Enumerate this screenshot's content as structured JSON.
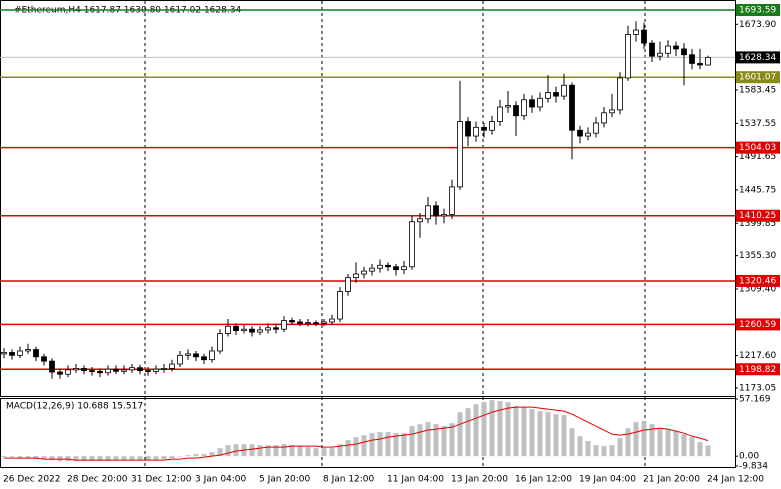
{
  "chart_data": {
    "type": "candlestick",
    "title": "#Ethereum,H4  1617.87 1630.80 1617.02 1628.34",
    "categories": [
      "26 Dec 2022",
      null,
      null,
      null,
      null,
      null,
      null,
      null,
      "28 Dec 20:00",
      null,
      null,
      null,
      null,
      null,
      null,
      null,
      "31 Dec 12:00",
      null,
      null,
      null,
      null,
      null,
      null,
      null,
      "3 Jan 04:00",
      null,
      null,
      null,
      null,
      null,
      null,
      null,
      "5 Jan 20:00",
      null,
      null,
      null,
      null,
      null,
      null,
      null,
      "8 Jan 12:00",
      null,
      null,
      null,
      null,
      null,
      null,
      null,
      "11 Jan 04:00",
      null,
      null,
      null,
      null,
      null,
      null,
      null,
      "13 Jan 20:00",
      null,
      null,
      null,
      null,
      null,
      null,
      null,
      "16 Jan 12:00",
      null,
      null,
      null,
      null,
      null,
      null,
      null,
      "19 Jan 04:00",
      null,
      null,
      null,
      null,
      null,
      null,
      null,
      "21 Jan 20:00",
      null,
      null,
      null,
      null,
      null,
      null,
      null,
      "24 Jan 12:00"
    ],
    "open": [
      1220,
      1222,
      1218,
      1224,
      1226,
      1216,
      1210,
      1195,
      1192,
      1198,
      1200,
      1197,
      1196,
      1194,
      1199,
      1196,
      1198,
      1201,
      1197,
      1196,
      1199,
      1200,
      1206,
      1218,
      1220,
      1216,
      1212,
      1224,
      1248,
      1258,
      1252,
      1254,
      1250,
      1253,
      1256,
      1254,
      1266,
      1264,
      1262,
      1263,
      1262,
      1264,
      1268,
      1306,
      1325,
      1330,
      1334,
      1338,
      1342,
      1340,
      1336,
      1340,
      1402,
      1406,
      1424,
      1410,
      1412,
      1450,
      1540,
      1520,
      1532,
      1528,
      1540,
      1560,
      1562,
      1548,
      1570,
      1560,
      1572,
      1580,
      1575,
      1590,
      1528,
      1520,
      1524,
      1538,
      1552,
      1556,
      1600,
      1660,
      1666,
      1648,
      1630,
      1634,
      1644,
      1640,
      1632,
      1620,
      1617.87
    ],
    "high": [
      1228,
      1226,
      1230,
      1234,
      1230,
      1220,
      1214,
      1200,
      1204,
      1206,
      1204,
      1202,
      1200,
      1204,
      1204,
      1204,
      1206,
      1205,
      1202,
      1204,
      1206,
      1212,
      1224,
      1226,
      1224,
      1220,
      1230,
      1254,
      1268,
      1262,
      1260,
      1258,
      1258,
      1262,
      1260,
      1272,
      1270,
      1268,
      1268,
      1266,
      1268,
      1274,
      1312,
      1330,
      1346,
      1340,
      1344,
      1350,
      1346,
      1344,
      1348,
      1410,
      1414,
      1436,
      1430,
      1420,
      1460,
      1596,
      1546,
      1540,
      1538,
      1548,
      1570,
      1582,
      1568,
      1578,
      1576,
      1580,
      1604,
      1588,
      1606,
      1594,
      1534,
      1532,
      1546,
      1560,
      1578,
      1608,
      1672,
      1678,
      1676,
      1652,
      1650,
      1652,
      1650,
      1648,
      1640,
      1640,
      1630.8
    ],
    "low": [
      1214,
      1212,
      1214,
      1220,
      1210,
      1204,
      1186,
      1186,
      1188,
      1194,
      1192,
      1190,
      1188,
      1190,
      1192,
      1192,
      1194,
      1192,
      1190,
      1192,
      1194,
      1196,
      1202,
      1212,
      1210,
      1206,
      1208,
      1220,
      1244,
      1246,
      1248,
      1244,
      1246,
      1248,
      1248,
      1250,
      1260,
      1258,
      1258,
      1258,
      1258,
      1260,
      1264,
      1300,
      1318,
      1324,
      1328,
      1332,
      1334,
      1328,
      1330,
      1336,
      1380,
      1400,
      1398,
      1400,
      1406,
      1446,
      1506,
      1512,
      1518,
      1522,
      1534,
      1552,
      1520,
      1542,
      1552,
      1554,
      1566,
      1566,
      1570,
      1488,
      1510,
      1514,
      1518,
      1532,
      1546,
      1550,
      1596,
      1650,
      1640,
      1622,
      1624,
      1628,
      1630,
      1590,
      1612,
      1612,
      1617.02
    ],
    "close": [
      1222,
      1218,
      1224,
      1226,
      1216,
      1210,
      1195,
      1192,
      1198,
      1200,
      1197,
      1196,
      1194,
      1199,
      1196,
      1198,
      1201,
      1197,
      1196,
      1199,
      1200,
      1206,
      1218,
      1220,
      1216,
      1212,
      1224,
      1248,
      1258,
      1252,
      1254,
      1250,
      1253,
      1256,
      1254,
      1266,
      1264,
      1262,
      1263,
      1262,
      1264,
      1268,
      1306,
      1325,
      1330,
      1334,
      1338,
      1342,
      1340,
      1336,
      1340,
      1402,
      1406,
      1424,
      1410,
      1412,
      1450,
      1540,
      1520,
      1532,
      1528,
      1540,
      1560,
      1562,
      1548,
      1570,
      1560,
      1572,
      1580,
      1575,
      1590,
      1528,
      1520,
      1524,
      1538,
      1552,
      1556,
      1600,
      1660,
      1666,
      1648,
      1630,
      1634,
      1644,
      1640,
      1632,
      1620,
      1617.87,
      1628.34
    ],
    "ylim": [
      1162,
      1706
    ],
    "yticks": [
      {
        "value": 1673.9,
        "label": "1673.90"
      },
      1583.45,
      1537.55,
      1491.65,
      1445.75,
      1399.85,
      {
        "value": 1355.3,
        "label": "1355.30"
      },
      {
        "value": 1309.4,
        "label": "1309.40"
      },
      {
        "value": 1217.6,
        "label": "1217.60"
      },
      1173.05
    ],
    "levels": [
      {
        "value": 1693.59,
        "color": "#1a7a1a"
      },
      {
        "value": 1601.07,
        "color": "#8a8a1a"
      },
      {
        "value": 1504.03,
        "color": "#e00000"
      },
      {
        "value": 1410.25,
        "color": "#e00000"
      },
      {
        "value": 1320.46,
        "color": "#e00000"
      },
      {
        "value": 1260.59,
        "color": "#e00000"
      },
      {
        "value": 1198.82,
        "color": "#e00000"
      }
    ],
    "indicator": {
      "type": "macd",
      "label": "MACD(12,26,9) 10.688 15.517",
      "histogram_color": "#c0c0c0",
      "signal_color": "#e00000",
      "ylim": [
        -9.834,
        57.169
      ],
      "yticks": [
        57.169,
        {
          "value": 0,
          "label": "0.00"
        },
        -9.834
      ],
      "histogram": [
        -1,
        -1,
        -2,
        -2,
        -3,
        -3,
        -4,
        -5,
        -5,
        -5,
        -5,
        -5,
        -5,
        -5,
        -4,
        -4,
        -4,
        -4,
        -4,
        -4,
        -3,
        -2,
        0,
        1,
        2,
        2,
        4,
        8,
        11,
        12,
        12,
        12,
        11,
        11,
        11,
        12,
        11,
        10,
        9,
        8,
        8,
        8,
        12,
        16,
        19,
        21,
        23,
        24,
        24,
        23,
        23,
        30,
        32,
        34,
        32,
        30,
        33,
        44,
        48,
        52,
        54,
        56,
        55,
        54,
        50,
        49,
        47,
        45,
        44,
        42,
        41,
        28,
        20,
        15,
        11,
        10,
        11,
        18,
        28,
        34,
        35,
        32,
        28,
        27,
        25,
        22,
        19,
        14,
        10.688
      ],
      "signal": [
        -2,
        -2,
        -2,
        -2,
        -2,
        -3,
        -3,
        -3,
        -3,
        -4,
        -4,
        -4,
        -4,
        -4,
        -4,
        -4,
        -4,
        -4,
        -4,
        -4,
        -4,
        -3,
        -3,
        -2,
        -2,
        -1,
        0,
        1,
        3,
        5,
        6,
        7,
        8,
        9,
        9,
        9,
        10,
        10,
        10,
        10,
        9,
        9,
        10,
        11,
        12,
        14,
        16,
        17,
        19,
        20,
        21,
        22,
        24,
        26,
        27,
        28,
        29,
        32,
        35,
        38,
        41,
        44,
        46,
        48,
        49,
        49,
        49,
        48,
        47,
        46,
        45,
        42,
        38,
        34,
        30,
        26,
        22,
        21,
        22,
        24,
        26,
        27,
        28,
        27,
        25,
        23,
        20,
        18,
        15.517
      ]
    }
  }
}
